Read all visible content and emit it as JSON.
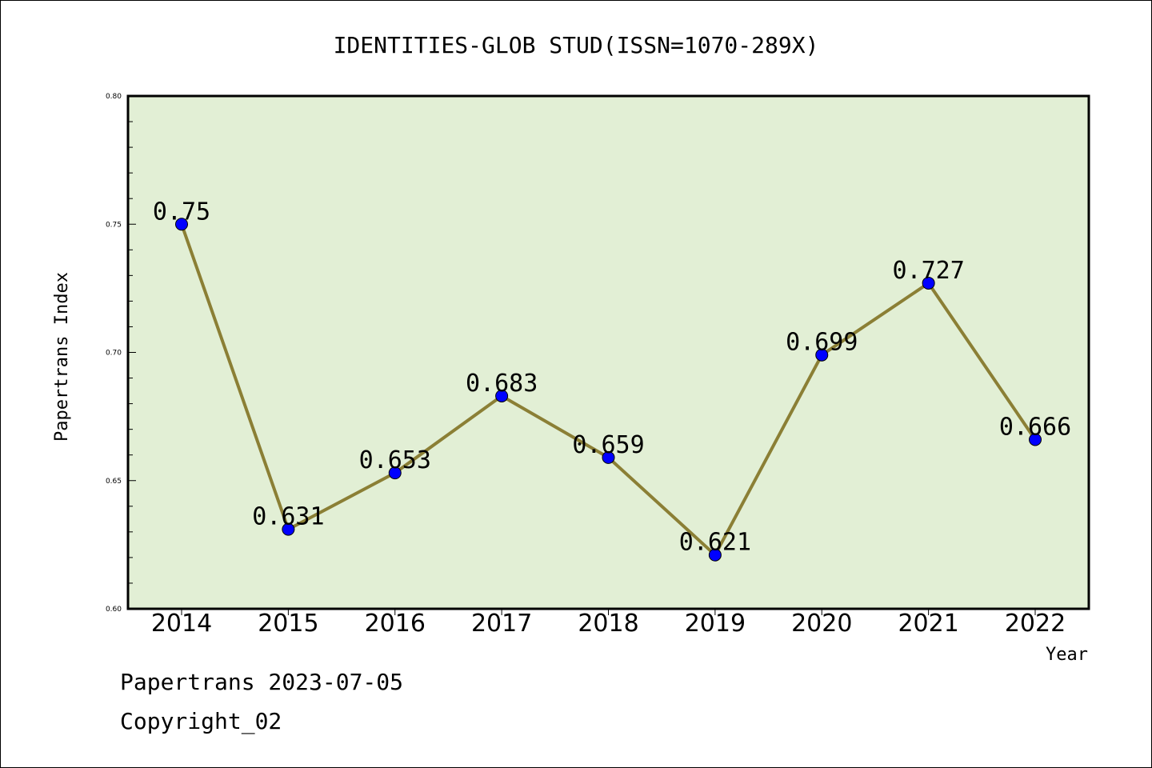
{
  "chart_data": {
    "type": "line",
    "title": "IDENTITIES-GLOB STUD(ISSN=1070-289X)",
    "xlabel": "Year",
    "ylabel": "Papertrans Index",
    "categories": [
      "2014",
      "2015",
      "2016",
      "2017",
      "2018",
      "2019",
      "2020",
      "2021",
      "2022"
    ],
    "series": [
      {
        "values": [
          0.75,
          0.631,
          0.653,
          0.683,
          0.659,
          0.621,
          0.699,
          0.727,
          0.666
        ],
        "labels": [
          "0.75",
          "0.631",
          "0.653",
          "0.683",
          "0.659",
          "0.621",
          "0.699",
          "0.727",
          "0.666"
        ]
      }
    ],
    "ylim": [
      0.6,
      0.8
    ],
    "yticks": [
      "0.60",
      "0.65",
      "0.70",
      "0.75",
      "0.80"
    ],
    "grid": false,
    "legend": "none",
    "colors": {
      "plot_background": "#e2efd5",
      "line": "#8b7f35",
      "marker": "#0000ff"
    }
  },
  "footer": {
    "line1": "Papertrans 2023-07-05",
    "line2": "Copyright_02"
  }
}
